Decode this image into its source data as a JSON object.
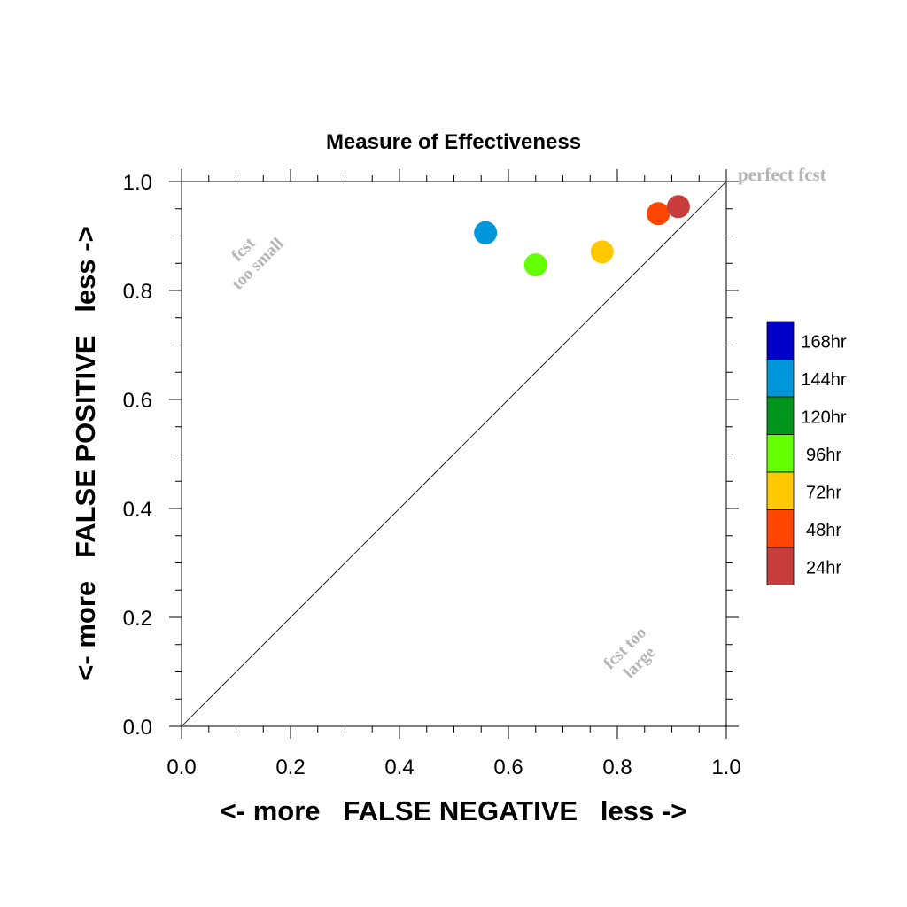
{
  "chart_data": {
    "type": "scatter",
    "title": "Measure of Effectiveness",
    "xlabel": "<- more   FALSE NEGATIVE   less ->",
    "ylabel": "<- more   FALSE POSITIVE   less ->",
    "xlim": [
      0.0,
      1.0
    ],
    "ylim": [
      0.0,
      1.0
    ],
    "x_ticks": [
      "0.0",
      "0.2",
      "0.4",
      "0.6",
      "0.8",
      "1.0"
    ],
    "y_ticks": [
      "0.0",
      "0.2",
      "0.4",
      "0.6",
      "0.8",
      "1.0"
    ],
    "diagonal_line": true,
    "grid": false,
    "legend_position": "right",
    "annotations": {
      "perfect": "perfect fcst",
      "too_small_line1": "fcst",
      "too_small_line2": "too small",
      "too_large_line1": "fcst too",
      "too_large_line2": "large"
    },
    "legend": [
      {
        "label": "168hr",
        "color": "#0000c8"
      },
      {
        "label": "144hr",
        "color": "#0096dc"
      },
      {
        "label": "120hr",
        "color": "#00961e"
      },
      {
        "label": "96hr",
        "color": "#64ff00"
      },
      {
        "label": "72hr",
        "color": "#ffc800"
      },
      {
        "label": "48hr",
        "color": "#ff4600"
      },
      {
        "label": "24hr",
        "color": "#c83c3c"
      }
    ],
    "points": [
      {
        "x": 0.558,
        "y": 0.906,
        "color": "#0096dc"
      },
      {
        "x": 0.65,
        "y": 0.847,
        "color": "#64ff00"
      },
      {
        "x": 0.772,
        "y": 0.871,
        "color": "#ffc800"
      },
      {
        "x": 0.875,
        "y": 0.941,
        "color": "#ff4600"
      },
      {
        "x": 0.912,
        "y": 0.954,
        "color": "#c83c3c"
      }
    ]
  }
}
